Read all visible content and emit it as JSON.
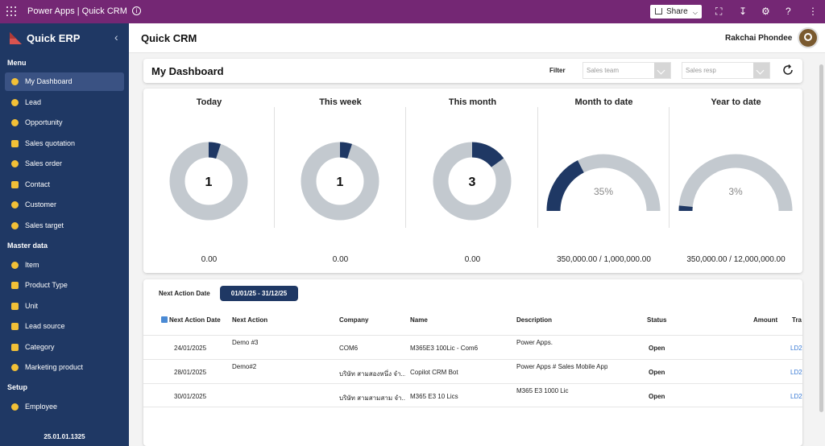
{
  "topbar": {
    "app_title": "Power Apps  |  Quick CRM",
    "share_label": "Share",
    "info_icon": "info-icon",
    "colors": {
      "bar": "#742774"
    }
  },
  "sidebar": {
    "brand": "Quick ERP",
    "sections": [
      {
        "title": "Menu",
        "items": [
          {
            "label": "My Dashboard",
            "icon": "dashboard-icon",
            "active": true
          },
          {
            "label": "Lead",
            "icon": "lead-icon"
          },
          {
            "label": "Opportunity",
            "icon": "bulb-icon"
          },
          {
            "label": "Sales quotation",
            "icon": "quotation-icon"
          },
          {
            "label": "Sales order",
            "icon": "order-icon"
          },
          {
            "label": "Contact",
            "icon": "contact-icon"
          },
          {
            "label": "Customer",
            "icon": "customer-icon"
          },
          {
            "label": "Sales target",
            "icon": "target-icon"
          }
        ]
      },
      {
        "title": "Master data",
        "items": [
          {
            "label": "Item",
            "icon": "item-icon"
          },
          {
            "label": "Product Type",
            "icon": "product-type-icon"
          },
          {
            "label": "Unit",
            "icon": "unit-icon"
          },
          {
            "label": "Lead source",
            "icon": "lead-source-icon"
          },
          {
            "label": "Category",
            "icon": "category-icon"
          },
          {
            "label": "Marketing product",
            "icon": "marketing-icon"
          }
        ]
      },
      {
        "title": "Setup",
        "items": [
          {
            "label": "Employee",
            "icon": "employee-icon"
          }
        ]
      }
    ],
    "version": "25.01.01.1325"
  },
  "header": {
    "title": "Quick CRM",
    "user_name": "Rakchai Phondee"
  },
  "dashboard": {
    "title": "My Dashboard",
    "filter_label": "Filter",
    "sales_team_placeholder": "Sales team",
    "sales_resp_placeholder": "Sales resp",
    "stats": [
      {
        "label": "Today",
        "type": "donut",
        "center": "1",
        "fraction": 0.05,
        "value": "0.00"
      },
      {
        "label": "This week",
        "type": "donut",
        "center": "1",
        "fraction": 0.05,
        "value": "0.00"
      },
      {
        "label": "This month",
        "type": "donut",
        "center": "3",
        "fraction": 0.15,
        "value": "0.00"
      },
      {
        "label": "Month to date",
        "type": "gauge",
        "center": "35%",
        "fraction": 0.35,
        "value": "350,000.00 / 1,000,000.00"
      },
      {
        "label": "Year to date",
        "type": "gauge",
        "center": "3%",
        "fraction": 0.03,
        "value": "350,000.00 / 12,000,000.00"
      }
    ],
    "colors": {
      "fill": "#1f3864",
      "track": "#c3c9cf"
    }
  },
  "table": {
    "filter_label": "Next Action Date",
    "date_range": "01/01/25 - 31/12/25",
    "columns": [
      "Next Action Date",
      "Next Action",
      "Company",
      "Name",
      "Description",
      "Status",
      "Amount",
      "Tra"
    ],
    "rows": [
      {
        "date": "24/01/2025",
        "next_action": "Demo #3",
        "company": "COM6",
        "name": "M365E3 100Lic - Com6",
        "description": "Power Apps.",
        "status": "Open",
        "amount": "",
        "tra": "LD2"
      },
      {
        "date": "28/01/2025",
        "next_action": "Demo#2",
        "company": "บริษัท สามสองหนึ่ง จำ...",
        "name": "Copilot CRM Bot",
        "description": "Power Apps # Sales Mobile App",
        "status": "Open",
        "amount": "",
        "tra": "LD2"
      },
      {
        "date": "30/01/2025",
        "next_action": "",
        "company": "บริษัท สามสามสาม จำ...",
        "name": "M365 E3 10 Lics",
        "description": "M365 E3 1000 Lic",
        "status": "Open",
        "amount": "",
        "tra": "LD2"
      }
    ]
  }
}
